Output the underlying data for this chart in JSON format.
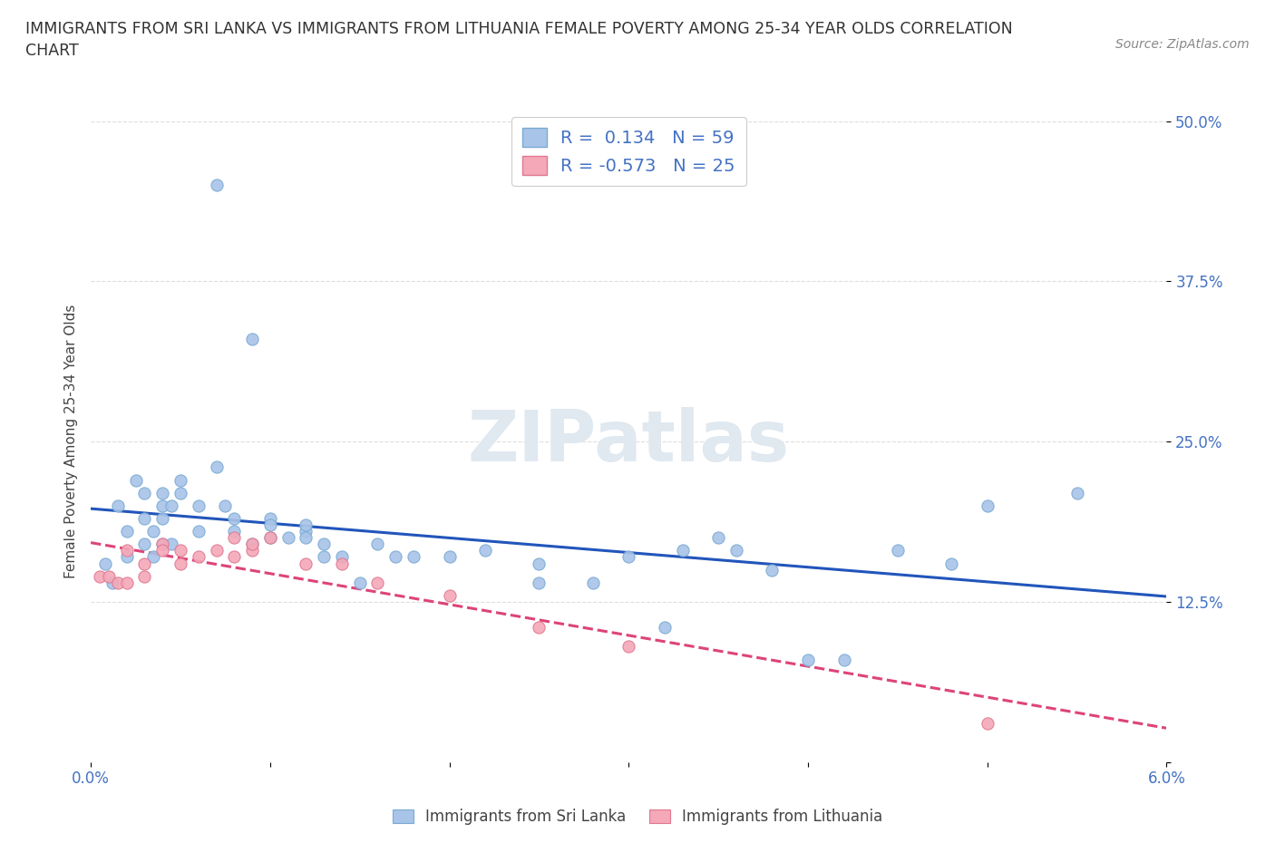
{
  "title": "IMMIGRANTS FROM SRI LANKA VS IMMIGRANTS FROM LITHUANIA FEMALE POVERTY AMONG 25-34 YEAR OLDS CORRELATION\nCHART",
  "source": "Source: ZipAtlas.com",
  "ylabel": "Female Poverty Among 25-34 Year Olds",
  "xlim": [
    0.0,
    0.06
  ],
  "ylim": [
    0.0,
    0.5
  ],
  "yticks": [
    0.0,
    0.125,
    0.25,
    0.375,
    0.5
  ],
  "yticklabels": [
    "",
    "12.5%",
    "25.0%",
    "37.5%",
    "50.0%"
  ],
  "xticks": [
    0.0,
    0.01,
    0.02,
    0.03,
    0.04,
    0.05,
    0.06
  ],
  "xticklabels": [
    "0.0%",
    "",
    "",
    "",
    "",
    "",
    "6.0%"
  ],
  "sri_lanka_color": "#a8c4e8",
  "sri_lanka_edge": "#7aaad4",
  "lithuania_color": "#f4a8b8",
  "lithuania_edge": "#e07890",
  "sri_lanka_R": 0.134,
  "sri_lanka_N": 59,
  "lithuania_R": -0.573,
  "lithuania_N": 25,
  "trend_sri_lanka_color": "#2255bb",
  "trend_lithuania_color": "#dd4477",
  "watermark_color": "#e0e8f0",
  "legend_label_1": "Immigrants from Sri Lanka",
  "legend_label_2": "Immigrants from Lithuania",
  "sri_lanka_x": [
    0.0008,
    0.0012,
    0.0015,
    0.002,
    0.002,
    0.0025,
    0.003,
    0.003,
    0.003,
    0.0035,
    0.0035,
    0.004,
    0.004,
    0.004,
    0.004,
    0.0045,
    0.0045,
    0.005,
    0.005,
    0.006,
    0.006,
    0.007,
    0.007,
    0.0075,
    0.008,
    0.008,
    0.009,
    0.009,
    0.01,
    0.01,
    0.01,
    0.011,
    0.012,
    0.012,
    0.012,
    0.013,
    0.013,
    0.014,
    0.015,
    0.016,
    0.017,
    0.018,
    0.02,
    0.022,
    0.025,
    0.025,
    0.028,
    0.03,
    0.032,
    0.033,
    0.035,
    0.036,
    0.038,
    0.04,
    0.042,
    0.045,
    0.048,
    0.05,
    0.055
  ],
  "sri_lanka_y": [
    0.155,
    0.14,
    0.2,
    0.16,
    0.18,
    0.22,
    0.17,
    0.19,
    0.21,
    0.16,
    0.18,
    0.21,
    0.17,
    0.19,
    0.2,
    0.17,
    0.2,
    0.21,
    0.22,
    0.18,
    0.2,
    0.45,
    0.23,
    0.2,
    0.18,
    0.19,
    0.33,
    0.17,
    0.19,
    0.175,
    0.185,
    0.175,
    0.18,
    0.175,
    0.185,
    0.16,
    0.17,
    0.16,
    0.14,
    0.17,
    0.16,
    0.16,
    0.16,
    0.165,
    0.14,
    0.155,
    0.14,
    0.16,
    0.105,
    0.165,
    0.175,
    0.165,
    0.15,
    0.08,
    0.08,
    0.165,
    0.155,
    0.2,
    0.21
  ],
  "lithuania_x": [
    0.0005,
    0.001,
    0.0015,
    0.002,
    0.002,
    0.003,
    0.003,
    0.004,
    0.004,
    0.005,
    0.005,
    0.006,
    0.007,
    0.008,
    0.008,
    0.009,
    0.009,
    0.01,
    0.012,
    0.014,
    0.016,
    0.02,
    0.025,
    0.03,
    0.05
  ],
  "lithuania_y": [
    0.145,
    0.145,
    0.14,
    0.14,
    0.165,
    0.145,
    0.155,
    0.17,
    0.165,
    0.155,
    0.165,
    0.16,
    0.165,
    0.16,
    0.175,
    0.165,
    0.17,
    0.175,
    0.155,
    0.155,
    0.14,
    0.13,
    0.105,
    0.09,
    0.03
  ]
}
